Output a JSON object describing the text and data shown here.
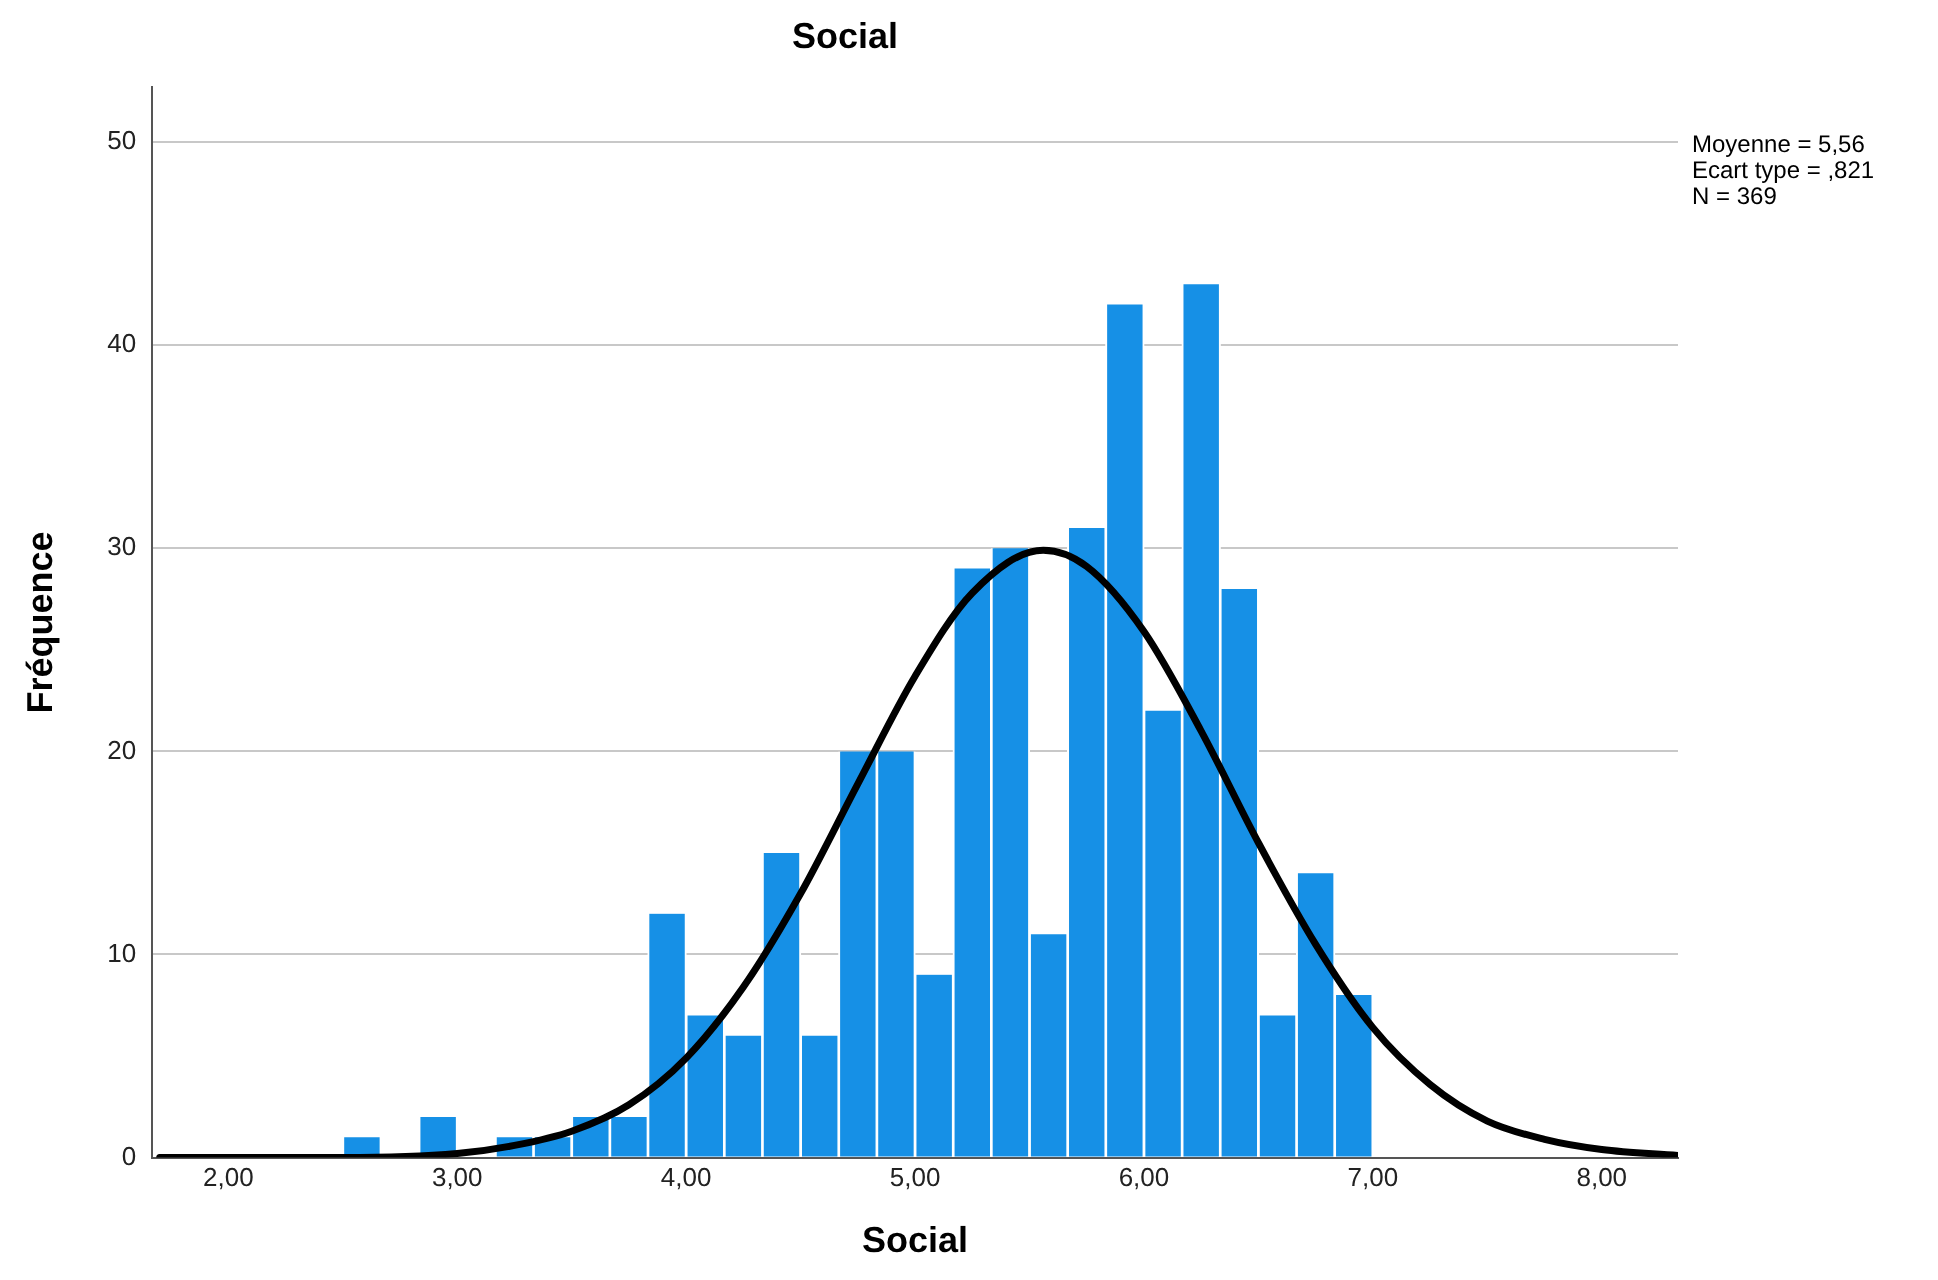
{
  "chart_data": {
    "type": "histogram",
    "title": "Social",
    "xlabel": "Social",
    "ylabel": "Fréquence",
    "annotations": [
      "Moyenne = 5,56",
      "Ecart type = ,821",
      "N = 369"
    ],
    "series": [
      {
        "type": "histogram",
        "color": "#1690e6",
        "bins": [
          2.5,
          2.667,
          2.833,
          3,
          3.167,
          3.333,
          3.5,
          3.667,
          3.833,
          4,
          4.167,
          4.333,
          4.5,
          4.667,
          4.833,
          5,
          5.167,
          5.333,
          5.5,
          5.667,
          5.833,
          6,
          6.167,
          6.333,
          6.5,
          6.667,
          6.833,
          7
        ],
        "values": [
          1,
          0,
          2,
          0,
          1,
          1,
          2,
          2,
          12,
          7,
          6,
          15,
          6,
          20,
          20,
          9,
          29,
          30,
          11,
          31,
          42,
          22,
          43,
          28,
          7,
          14,
          8
        ]
      },
      {
        "type": "line",
        "color": "#000000",
        "x": [
          1.7,
          2,
          2.5,
          3,
          3.25,
          3.5,
          3.75,
          4,
          4.25,
          4.5,
          4.75,
          5,
          5.25,
          5.56,
          5.75,
          6,
          6.25,
          6.5,
          6.75,
          7,
          7.25,
          7.5,
          7.75,
          8,
          8.333
        ],
        "values": [
          0,
          0,
          0,
          0.2,
          0.6,
          1.3,
          2.6,
          4.9,
          8.4,
          13,
          18.4,
          23.7,
          27.8,
          29.9,
          29.1,
          25.9,
          21,
          15.5,
          10.5,
          6.4,
          3.6,
          1.8,
          0.9,
          0.4,
          0.1
        ]
      }
    ],
    "xlim": [
      1.667,
      8.333
    ],
    "xticks": [
      {
        "value": 2,
        "label": "2,00"
      },
      {
        "value": 3,
        "label": "3,00"
      },
      {
        "value": 4,
        "label": "4,00"
      },
      {
        "value": 5,
        "label": "5,00"
      },
      {
        "value": 6,
        "label": "6,00"
      },
      {
        "value": 7,
        "label": "7,00"
      },
      {
        "value": 8,
        "label": "8,00"
      }
    ],
    "ylim": [
      0,
      52.7
    ],
    "yticks": [
      0,
      10,
      20,
      30,
      40,
      50
    ],
    "grid": "y",
    "legend": false,
    "marker": "none",
    "line_style": "solid"
  }
}
